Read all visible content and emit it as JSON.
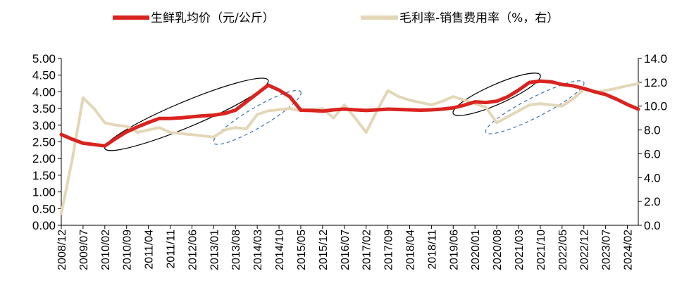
{
  "chart_data": {
    "type": "line",
    "title": "",
    "legend_position": "top",
    "grid": false,
    "x": [
      "2008/12",
      "2009/03",
      "2009/07",
      "2009/10",
      "2010/02",
      "2010/05",
      "2010/09",
      "2010/12",
      "2011/04",
      "2011/07",
      "2011/11",
      "2012/02",
      "2012/06",
      "2012/09",
      "2013/01",
      "2013/04",
      "2013/08",
      "2013/11",
      "2014/03",
      "2014/06",
      "2014/10",
      "2015/01",
      "2015/05",
      "2015/08",
      "2015/12",
      "2016/03",
      "2016/07",
      "2016/10",
      "2017/02",
      "2017/05",
      "2017/09",
      "2017/12",
      "2018/04",
      "2018/07",
      "2018/11",
      "2019/02",
      "2019/06",
      "2019/09",
      "2020/01",
      "2020/04",
      "2020/08",
      "2020/11",
      "2021/03",
      "2021/06",
      "2021/10",
      "2022/01",
      "2022/05",
      "2022/08",
      "2022/12",
      "2023/03",
      "2023/07",
      "2023/10",
      "2024/02",
      "2024/05"
    ],
    "x_tick_labels": [
      "2008/12",
      "2009/07",
      "2010/02",
      "2010/09",
      "2011/04",
      "2011/11",
      "2012/06",
      "2013/01",
      "2013/08",
      "2014/03",
      "2014/10",
      "2015/05",
      "2015/12",
      "2016/07",
      "2017/02",
      "2017/09",
      "2018/04",
      "2018/11",
      "2019/06",
      "2020/01",
      "2020/08",
      "2021/03",
      "2021/10",
      "2022/05",
      "2022/12",
      "2023/07",
      "2024/02"
    ],
    "y_left": {
      "ylim": [
        0,
        5
      ],
      "ticks": [
        "0.00",
        "0.50",
        "1.00",
        "1.50",
        "2.00",
        "2.50",
        "3.00",
        "3.50",
        "4.00",
        "4.50",
        "5.00"
      ]
    },
    "y_right": {
      "ylim": [
        0,
        14
      ],
      "ticks": [
        "0.0",
        "2.0",
        "4.0",
        "6.0",
        "8.0",
        "10.0",
        "12.0",
        "14.0"
      ]
    },
    "series": [
      {
        "name": "生鲜乳均价（元/公斤）",
        "axis": "left",
        "color": "#d9231f",
        "values": [
          2.72,
          2.58,
          2.46,
          2.42,
          2.38,
          2.6,
          2.8,
          2.95,
          3.08,
          3.2,
          3.2,
          3.22,
          3.25,
          3.28,
          3.3,
          3.35,
          3.45,
          3.7,
          3.95,
          4.2,
          4.05,
          3.85,
          3.45,
          3.44,
          3.42,
          3.46,
          3.48,
          3.46,
          3.44,
          3.46,
          3.48,
          3.47,
          3.46,
          3.45,
          3.46,
          3.48,
          3.52,
          3.6,
          3.7,
          3.68,
          3.72,
          3.85,
          4.05,
          4.28,
          4.32,
          4.3,
          4.22,
          4.18,
          4.1,
          4.0,
          3.92,
          3.78,
          3.62,
          3.48
        ]
      },
      {
        "name": "毛利率-销售费用率（%，右）",
        "axis": "right",
        "color": "#e3d7b8",
        "values": [
          1.0,
          5.5,
          10.7,
          9.8,
          8.6,
          8.4,
          8.3,
          7.8,
          8.0,
          8.2,
          7.8,
          7.7,
          7.6,
          7.5,
          7.4,
          8.0,
          8.2,
          8.1,
          9.3,
          9.6,
          9.7,
          9.8,
          9.6,
          9.7,
          9.8,
          9.0,
          10.1,
          9.0,
          7.8,
          9.6,
          11.3,
          10.8,
          10.5,
          10.3,
          10.1,
          10.4,
          10.8,
          10.5,
          10.2,
          9.9,
          8.6,
          9.1,
          9.6,
          10.1,
          10.2,
          10.1,
          10.0,
          10.6,
          11.4,
          11.2,
          11.3,
          11.5,
          11.7,
          11.9
        ]
      }
    ],
    "annotations": [
      {
        "shape": "ellipse",
        "style": "solid",
        "axis": "left",
        "x_range": [
          "2010/02",
          "2014/06"
        ],
        "y_range": [
          2.3,
          4.35
        ]
      },
      {
        "shape": "ellipse",
        "style": "dashed",
        "axis": "right",
        "x_range": [
          "2013/01",
          "2015/05"
        ],
        "y_range": [
          6.9,
          11.2
        ]
      },
      {
        "shape": "ellipse",
        "style": "solid",
        "axis": "left",
        "x_range": [
          "2019/06",
          "2021/10"
        ],
        "y_range": [
          3.35,
          4.5
        ]
      },
      {
        "shape": "ellipse",
        "style": "dashed",
        "axis": "right",
        "x_range": [
          "2020/04",
          "2022/12"
        ],
        "y_range": [
          7.8,
          12.0
        ]
      }
    ]
  }
}
